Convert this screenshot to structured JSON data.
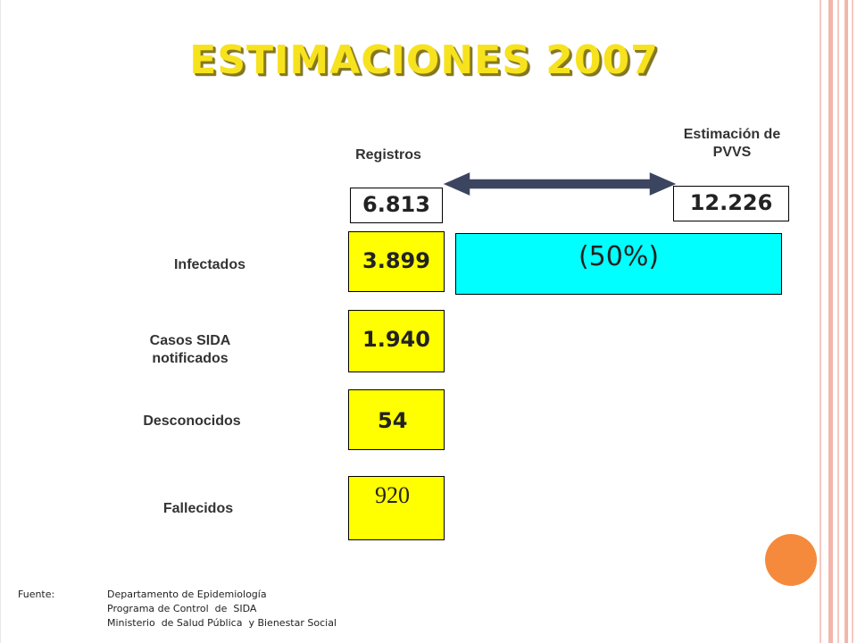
{
  "title": "ESTIMACIONES 2007",
  "headers": {
    "registros": "Registros",
    "estimacion_line1": "Estimación de",
    "estimacion_line2": "PVVS"
  },
  "totals": {
    "registros": "6.813",
    "estimacion": "12.226"
  },
  "rows": [
    {
      "label_line1": "Infectados",
      "label_line2": "",
      "value": "3.899"
    },
    {
      "label_line1": "Casos SIDA",
      "label_line2": "notificados",
      "value": "1.940"
    },
    {
      "label_line1": "Desconocidos",
      "label_line2": "",
      "value": "54"
    },
    {
      "label_line1": "Fallecidos",
      "label_line2": "",
      "value": "920"
    }
  ],
  "percentage": "(50%)",
  "footer": {
    "label": "Fuente:",
    "line1": "Departamento de Epidemiología",
    "line2": "Programa de Control  de  SIDA",
    "line3": "Ministerio  de Salud Pública  y Bienestar Social"
  },
  "colors": {
    "title": "#f7e21e",
    "yellow_box": "#ffff00",
    "cyan_box": "#00ffff",
    "arrow": "#3c4560",
    "accent_circle": "#f58a3c",
    "frame": "#f3b6ab"
  },
  "icons": {
    "arrow": "double-headed-arrow-icon",
    "circle": "decorative-circle"
  }
}
